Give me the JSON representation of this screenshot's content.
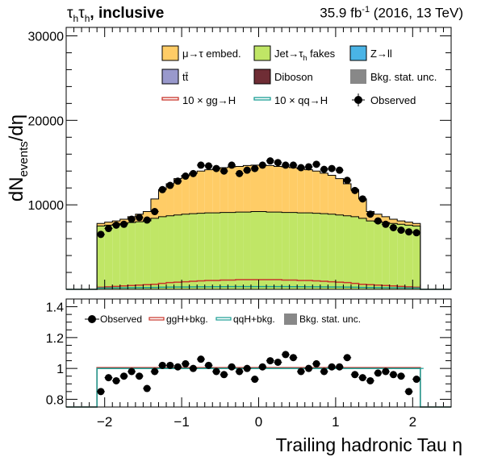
{
  "header": {
    "left_pre": "τ",
    "left_sub1": "h",
    "left_mid": "τ",
    "left_sub2": "h",
    "left_post": ", inclusive",
    "lumi_pre": "35.9 fb",
    "lumi_sup": "-1",
    "lumi_post": " (2016, 13 TeV)"
  },
  "top_axis": {
    "ylabel_main": "dN",
    "ylabel_sub": "events",
    "ylabel_post": "/dη",
    "ylim": [
      0,
      31000
    ],
    "yticks": [
      "10000",
      "20000",
      "30000"
    ]
  },
  "ratio_axis": {
    "ylim": [
      0.75,
      1.45
    ],
    "yticks": [
      "0.8",
      "1",
      "1.2",
      "1.4"
    ]
  },
  "x_axis": {
    "label": "Trailing hadronic Tau  η",
    "xlim": [
      -2.5,
      2.5
    ],
    "ticks": [
      "−2",
      "−1",
      "0",
      "1",
      "2"
    ]
  },
  "legend": {
    "embed": "μ→τ embed.",
    "fakes_pre": "Jet→τ",
    "fakes_sub": "h",
    "fakes_post": " fakes",
    "zll": "Z→ll",
    "ttbar": "tt̄",
    "diboson": "Diboson",
    "stat": "Bkg. stat. unc.",
    "ggh": "10 × gg→H",
    "qqh": "10 × qq→H",
    "observed": "Observed"
  },
  "ratio_legend": {
    "observed": "Observed",
    "ggh": "ggH+bkg.",
    "qqh": "qqH+bkg.",
    "stat": "Bkg. stat. unc."
  },
  "colors": {
    "embed": "#ffcc66",
    "fakes": "#c0e666",
    "zll": "#4ab4e6",
    "ttbar": "#9999cc",
    "diboson": "#6f2d35",
    "stat": "#888888",
    "ggh": "#c8342a",
    "qqh": "#1a9e94"
  },
  "chart_data": {
    "type": "bar",
    "x_range": [
      -2.1,
      2.1
    ],
    "bin_width": 0.1,
    "bin_centers": [
      -2.05,
      -1.95,
      -1.85,
      -1.75,
      -1.65,
      -1.55,
      -1.45,
      -1.35,
      -1.25,
      -1.15,
      -1.05,
      -0.95,
      -0.85,
      -0.75,
      -0.65,
      -0.55,
      -0.45,
      -0.35,
      -0.25,
      -0.15,
      -0.05,
      0.05,
      0.15,
      0.25,
      0.35,
      0.45,
      0.55,
      0.65,
      0.75,
      0.85,
      0.95,
      1.05,
      1.15,
      1.25,
      1.35,
      1.45,
      1.55,
      1.65,
      1.75,
      1.85,
      1.95,
      2.05
    ],
    "series": [
      {
        "name": "Jet→τh fakes",
        "kind": "stack",
        "values": [
          7500,
          7600,
          7700,
          7800,
          7900,
          8000,
          8100,
          8400,
          8600,
          8700,
          8800,
          8900,
          8950,
          9000,
          9050,
          9050,
          9100,
          9100,
          9150,
          9150,
          9200,
          9200,
          9150,
          9150,
          9100,
          9100,
          9050,
          9050,
          9000,
          8950,
          8900,
          8800,
          8700,
          8600,
          8400,
          8100,
          8000,
          7900,
          7800,
          7700,
          7600,
          7500
        ]
      },
      {
        "name": "μ→τ embed.",
        "kind": "stack",
        "values": [
          300,
          350,
          400,
          500,
          700,
          900,
          1100,
          2300,
          3200,
          3800,
          4300,
          4600,
          4800,
          5000,
          5100,
          5200,
          5300,
          5400,
          5400,
          5500,
          5500,
          5500,
          5500,
          5400,
          5400,
          5300,
          5200,
          5100,
          5000,
          4800,
          4600,
          4300,
          3800,
          3200,
          2300,
          1100,
          900,
          700,
          500,
          400,
          350,
          300
        ]
      },
      {
        "name": "10 × gg→H",
        "kind": "overlay",
        "values": [
          250,
          300,
          350,
          400,
          450,
          500,
          550,
          600,
          700,
          800,
          850,
          900,
          950,
          1000,
          1050,
          1050,
          1100,
          1100,
          1150,
          1150,
          1150,
          1150,
          1150,
          1150,
          1100,
          1100,
          1050,
          1050,
          1000,
          950,
          900,
          850,
          800,
          700,
          600,
          550,
          500,
          450,
          400,
          350,
          300,
          250
        ]
      },
      {
        "name": "10 × qq→H",
        "kind": "overlay",
        "values": [
          150,
          160,
          170,
          180,
          190,
          200,
          210,
          230,
          250,
          260,
          270,
          280,
          290,
          300,
          300,
          310,
          310,
          320,
          320,
          320,
          320,
          320,
          320,
          320,
          320,
          310,
          310,
          300,
          300,
          290,
          280,
          270,
          260,
          250,
          230,
          210,
          200,
          190,
          180,
          170,
          160,
          150
        ]
      },
      {
        "name": "Observed",
        "kind": "points",
        "values": [
          6500,
          7200,
          7600,
          7700,
          8300,
          8500,
          8200,
          9200,
          11800,
          12300,
          12800,
          13400,
          13700,
          14700,
          14600,
          14300,
          14000,
          14700,
          13700,
          14100,
          14300,
          14700,
          15200,
          15000,
          14700,
          14700,
          14400,
          14500,
          14800,
          14200,
          14300,
          14100,
          12900,
          11700,
          10700,
          8900,
          8100,
          7700,
          7300,
          7000,
          6800,
          6700
        ]
      },
      {
        "name": "Observed ratio",
        "kind": "ratio",
        "values": [
          0.85,
          0.94,
          0.92,
          0.95,
          0.98,
          0.95,
          0.87,
          0.98,
          1.02,
          1.02,
          1.01,
          1.03,
          1.0,
          1.06,
          1.02,
          0.98,
          0.96,
          1.01,
          0.98,
          1.0,
          0.93,
          1.01,
          1.05,
          1.04,
          1.09,
          1.07,
          0.98,
          1.0,
          1.03,
          0.98,
          1.01,
          1.01,
          1.07,
          0.96,
          0.94,
          0.92,
          0.97,
          0.98,
          0.96,
          0.95,
          0.85,
          0.93
        ]
      }
    ]
  }
}
